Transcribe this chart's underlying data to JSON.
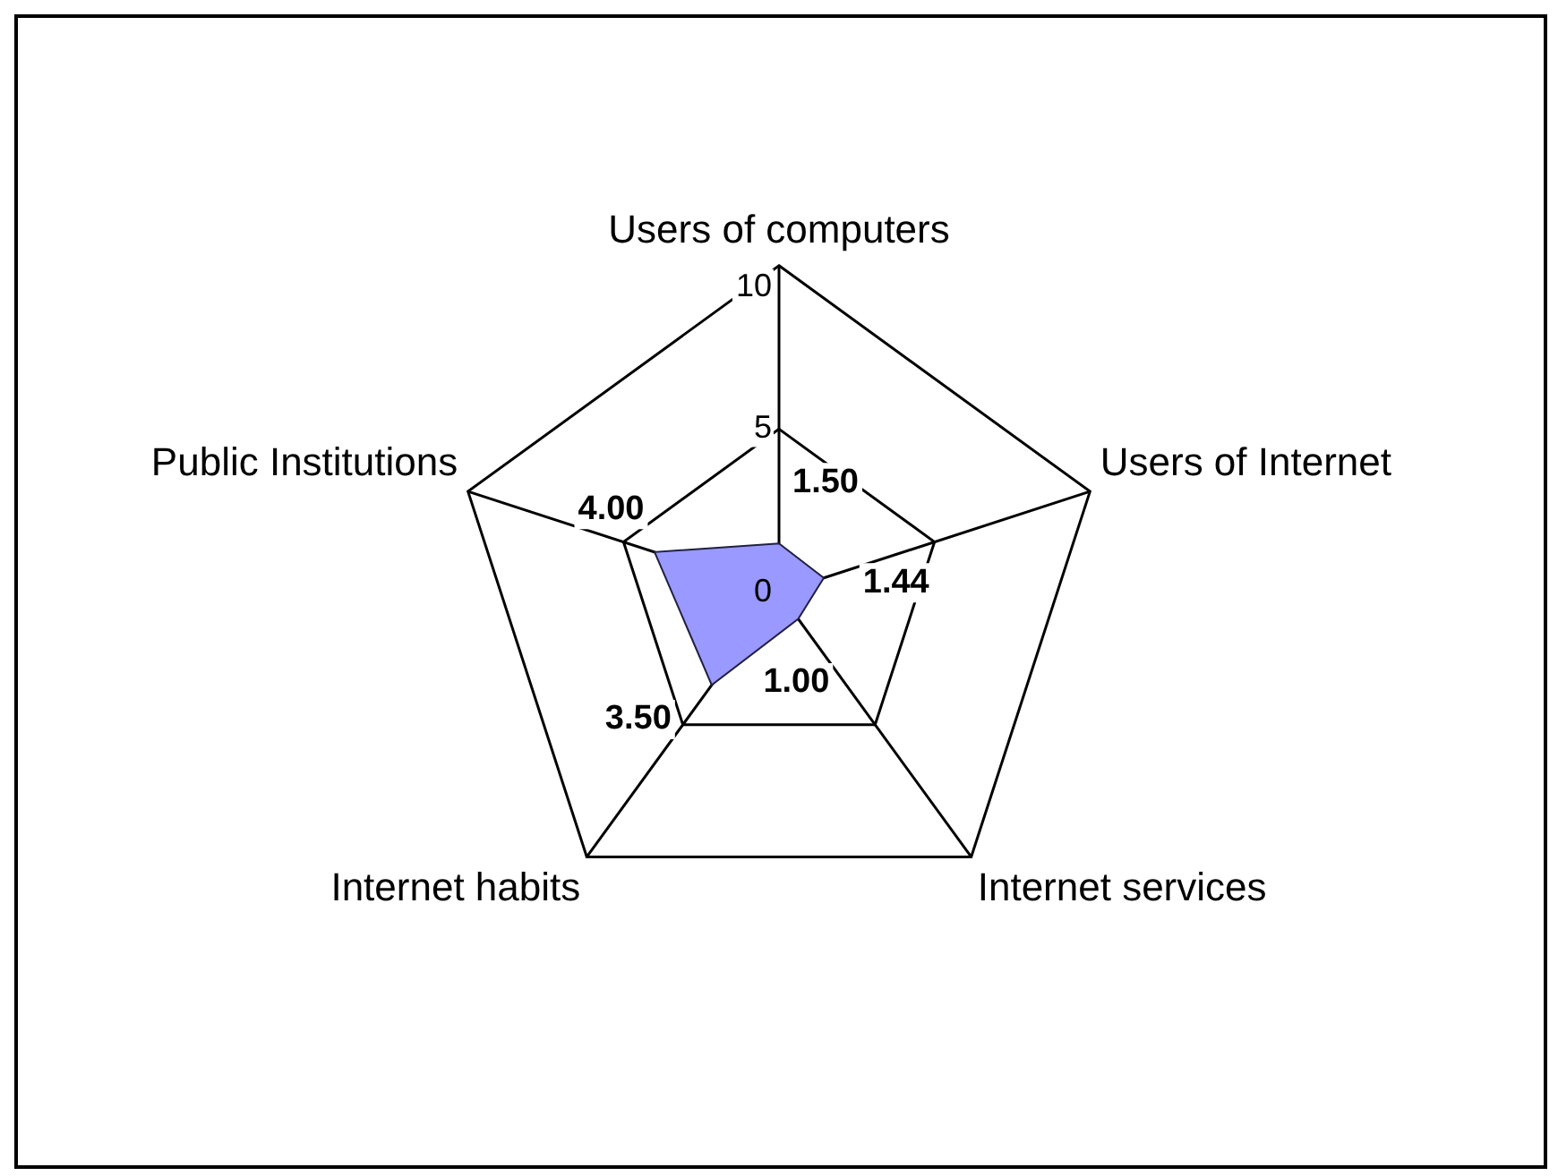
{
  "chart_data": {
    "type": "radar",
    "categories": [
      "Users of computers",
      "Users of Internet",
      "Internet services",
      "Internet habits",
      "Public Institutions"
    ],
    "series": [
      {
        "color": "#9999ff",
        "values": [
          1.5,
          1.44,
          1.0,
          3.5,
          4.0
        ],
        "value_labels": [
          "1.50",
          "1.44",
          "1.00",
          "3.50",
          "4.00"
        ]
      }
    ],
    "ylim": [
      0,
      10
    ],
    "yticks": [
      0,
      5,
      10
    ],
    "grid": true,
    "legend": false
  }
}
